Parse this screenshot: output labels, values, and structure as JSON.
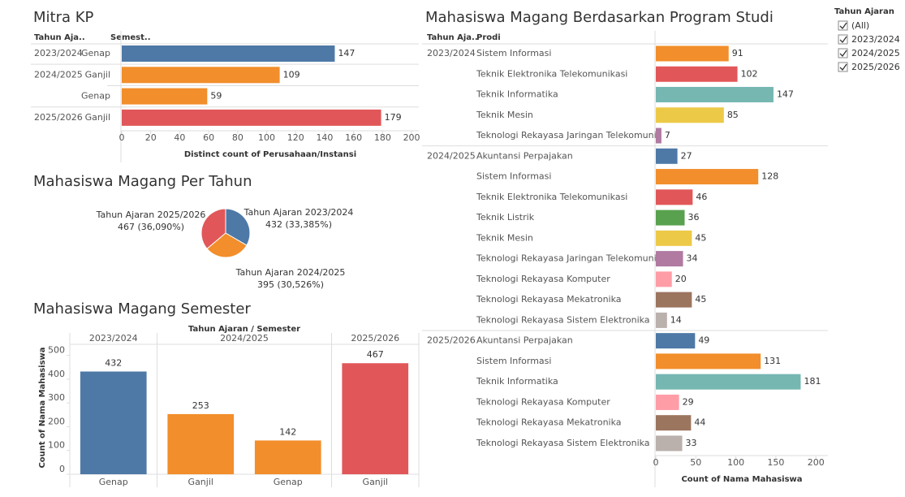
{
  "chart_data": [
    {
      "type": "hbar",
      "title": "Mitra KP",
      "column_headers": [
        "Tahun Aja..",
        "Semest.."
      ],
      "group_labels": [
        "2023/2024",
        "2024/2025",
        null,
        "2025/2026"
      ],
      "categories": [
        "Genap",
        "Ganjil",
        "Genap",
        "Ganjil"
      ],
      "values": [
        147,
        109,
        59,
        179
      ],
      "colors": [
        "#4e79a7",
        "#f28e2b",
        "#f28e2b",
        "#e15759"
      ],
      "xlim": [
        0,
        205
      ],
      "xticks": [
        0,
        20,
        40,
        60,
        80,
        100,
        120,
        140,
        160,
        180,
        200
      ],
      "xlabel": "Distinct count of Perusahaan/Instansi"
    },
    {
      "type": "pie",
      "title": "Mahasiswa Magang Per Tahun",
      "categories": [
        "Tahun Ajaran 2023/2024",
        "Tahun Ajaran 2024/2025",
        "Tahun Ajaran 2025/2026"
      ],
      "values": [
        432,
        395,
        467
      ],
      "value_labels": [
        "432 (33,385%)",
        "395 (30,526%)",
        "467 (36,090%)"
      ],
      "colors": [
        "#4e79a7",
        "#f28e2b",
        "#e15759"
      ]
    },
    {
      "type": "bar",
      "title": "Mahasiswa Magang Semester",
      "header": "Tahun Ajaran / Semester",
      "group_labels": [
        "2023/2024",
        "2024/2025",
        null,
        "2025/2026"
      ],
      "categories": [
        "Genap",
        "Ganjil",
        "Genap",
        "Ganjil"
      ],
      "values": [
        432,
        253,
        142,
        467
      ],
      "colors": [
        "#4e79a7",
        "#f28e2b",
        "#f28e2b",
        "#e15759"
      ],
      "ylabel": "Count of Nama Mahasiswa",
      "ylim": [
        0,
        560
      ],
      "yticks": [
        0,
        100,
        200,
        300,
        400,
        500
      ]
    },
    {
      "type": "hbar",
      "title": "Mahasiswa Magang Berdasarkan Program Studi",
      "column_headers": [
        "Tahun Aja..",
        "Prodi"
      ],
      "group_labels": [
        "2023/2024",
        null,
        null,
        null,
        null,
        "2024/2025",
        null,
        null,
        null,
        null,
        null,
        null,
        null,
        null,
        "2025/2026",
        null,
        null,
        null,
        null,
        null
      ],
      "categories": [
        "Sistem Informasi",
        "Teknik Elektronika Telekomunikasi",
        "Teknik Informatika",
        "Teknik Mesin",
        "Teknologi Rekayasa Jaringan Telekomuni..",
        "Akuntansi Perpajakan",
        "Sistem Informasi",
        "Teknik Elektronika Telekomunikasi",
        "Teknik Listrik",
        "Teknik Mesin",
        "Teknologi Rekayasa Jaringan Telekomuni..",
        "Teknologi Rekayasa Komputer",
        "Teknologi Rekayasa Mekatronika",
        "Teknologi Rekayasa Sistem Elektronika",
        "Akuntansi Perpajakan",
        "Sistem Informasi",
        "Teknik Informatika",
        "Teknologi Rekayasa Komputer",
        "Teknologi Rekayasa Mekatronika",
        "Teknologi Rekayasa Sistem Elektronika"
      ],
      "values": [
        91,
        102,
        147,
        85,
        7,
        27,
        128,
        46,
        36,
        45,
        34,
        20,
        45,
        14,
        49,
        131,
        181,
        29,
        44,
        33
      ],
      "colors": [
        "#f28e2b",
        "#e15759",
        "#76b7b2",
        "#edc948",
        "#b07aa1",
        "#4e79a7",
        "#f28e2b",
        "#e15759",
        "#59a14f",
        "#edc948",
        "#b07aa1",
        "#ff9da7",
        "#9c755f",
        "#bab0ac",
        "#4e79a7",
        "#f28e2b",
        "#76b7b2",
        "#ff9da7",
        "#9c755f",
        "#bab0ac"
      ],
      "xlim": [
        0,
        215
      ],
      "xticks": [
        0,
        50,
        100,
        150,
        200
      ],
      "xlabel": "Count of Nama Mahasiswa"
    }
  ],
  "filter": {
    "title": "Tahun Ajaran",
    "items": [
      "(All)",
      "2023/2024",
      "2024/2025",
      "2025/2026"
    ]
  }
}
